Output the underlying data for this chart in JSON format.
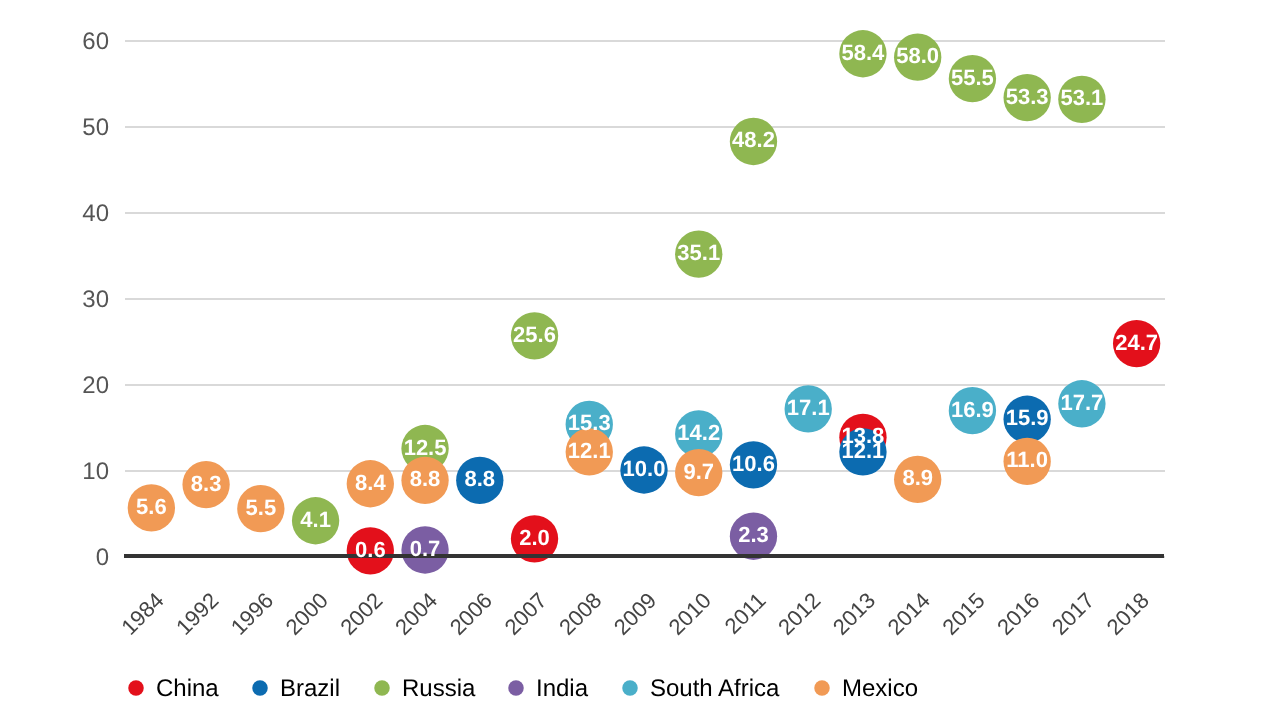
{
  "chart_data": {
    "type": "scatter",
    "categories": [
      "1984",
      "1992",
      "1996",
      "2000",
      "2002",
      "2004",
      "2006",
      "2007",
      "2008",
      "2009",
      "2010",
      "2011",
      "2012",
      "2013",
      "2014",
      "2015",
      "2016",
      "2017",
      "2018"
    ],
    "series": [
      {
        "name": "China",
        "color": "#e3101b",
        "values": [
          null,
          null,
          null,
          null,
          0.6,
          null,
          null,
          2.0,
          null,
          null,
          null,
          null,
          null,
          13.8,
          null,
          null,
          null,
          null,
          24.7
        ],
        "value_labels": [
          null,
          null,
          null,
          null,
          "0.6",
          null,
          null,
          "2.0",
          null,
          null,
          null,
          null,
          null,
          "13.8",
          null,
          null,
          null,
          null,
          "24.7"
        ]
      },
      {
        "name": "Brazil",
        "color": "#0c6bb0",
        "values": [
          null,
          null,
          null,
          null,
          null,
          null,
          8.8,
          null,
          null,
          10.0,
          null,
          10.6,
          null,
          12.1,
          null,
          null,
          15.9,
          null,
          null
        ],
        "value_labels": [
          null,
          null,
          null,
          null,
          null,
          null,
          "8.8",
          null,
          null,
          "10.0",
          null,
          "10.6",
          null,
          "12.1",
          null,
          null,
          "15.9",
          null,
          null
        ]
      },
      {
        "name": "Russia",
        "color": "#8fb751",
        "values": [
          null,
          null,
          null,
          4.1,
          null,
          12.5,
          null,
          25.6,
          null,
          null,
          35.1,
          48.2,
          null,
          58.4,
          58.0,
          55.5,
          53.3,
          53.1,
          null
        ],
        "value_labels": [
          null,
          null,
          null,
          "4.1",
          null,
          "12.5",
          null,
          "25.6",
          null,
          null,
          "35.1",
          "48.2",
          null,
          "58.4",
          "58.0",
          "55.5",
          "53.3",
          "53.1",
          null
        ]
      },
      {
        "name": "India",
        "color": "#7b5ea3",
        "values": [
          null,
          null,
          null,
          null,
          null,
          0.7,
          null,
          null,
          null,
          null,
          null,
          2.3,
          null,
          null,
          null,
          null,
          null,
          null,
          null
        ],
        "value_labels": [
          null,
          null,
          null,
          null,
          null,
          "0.7",
          null,
          null,
          null,
          null,
          null,
          "2.3",
          null,
          null,
          null,
          null,
          null,
          null,
          null
        ]
      },
      {
        "name": "South Africa",
        "color": "#4aafc9",
        "values": [
          null,
          null,
          null,
          null,
          null,
          null,
          null,
          null,
          15.3,
          null,
          14.2,
          null,
          17.1,
          null,
          null,
          16.9,
          null,
          17.7,
          null
        ],
        "value_labels": [
          null,
          null,
          null,
          null,
          null,
          null,
          null,
          null,
          "15.3",
          null,
          "14.2",
          null,
          "17.1",
          null,
          null,
          "16.9",
          null,
          "17.7",
          null
        ]
      },
      {
        "name": "Mexico",
        "color": "#f19a55",
        "values": [
          5.6,
          8.3,
          5.5,
          null,
          8.4,
          8.8,
          null,
          null,
          12.1,
          null,
          9.7,
          null,
          null,
          null,
          8.9,
          null,
          11.0,
          null,
          null
        ],
        "value_labels": [
          "5.6",
          "8.3",
          "5.5",
          null,
          "8.4",
          "8.8",
          null,
          null,
          "12.1",
          null,
          "9.7",
          null,
          null,
          null,
          "8.9",
          null,
          "11.0",
          null,
          null
        ]
      }
    ],
    "ylim": [
      0,
      60
    ],
    "yticks": [
      0,
      10,
      20,
      30,
      40,
      50,
      60
    ],
    "grid": "y",
    "legend": "bottom",
    "marker": "circle"
  }
}
